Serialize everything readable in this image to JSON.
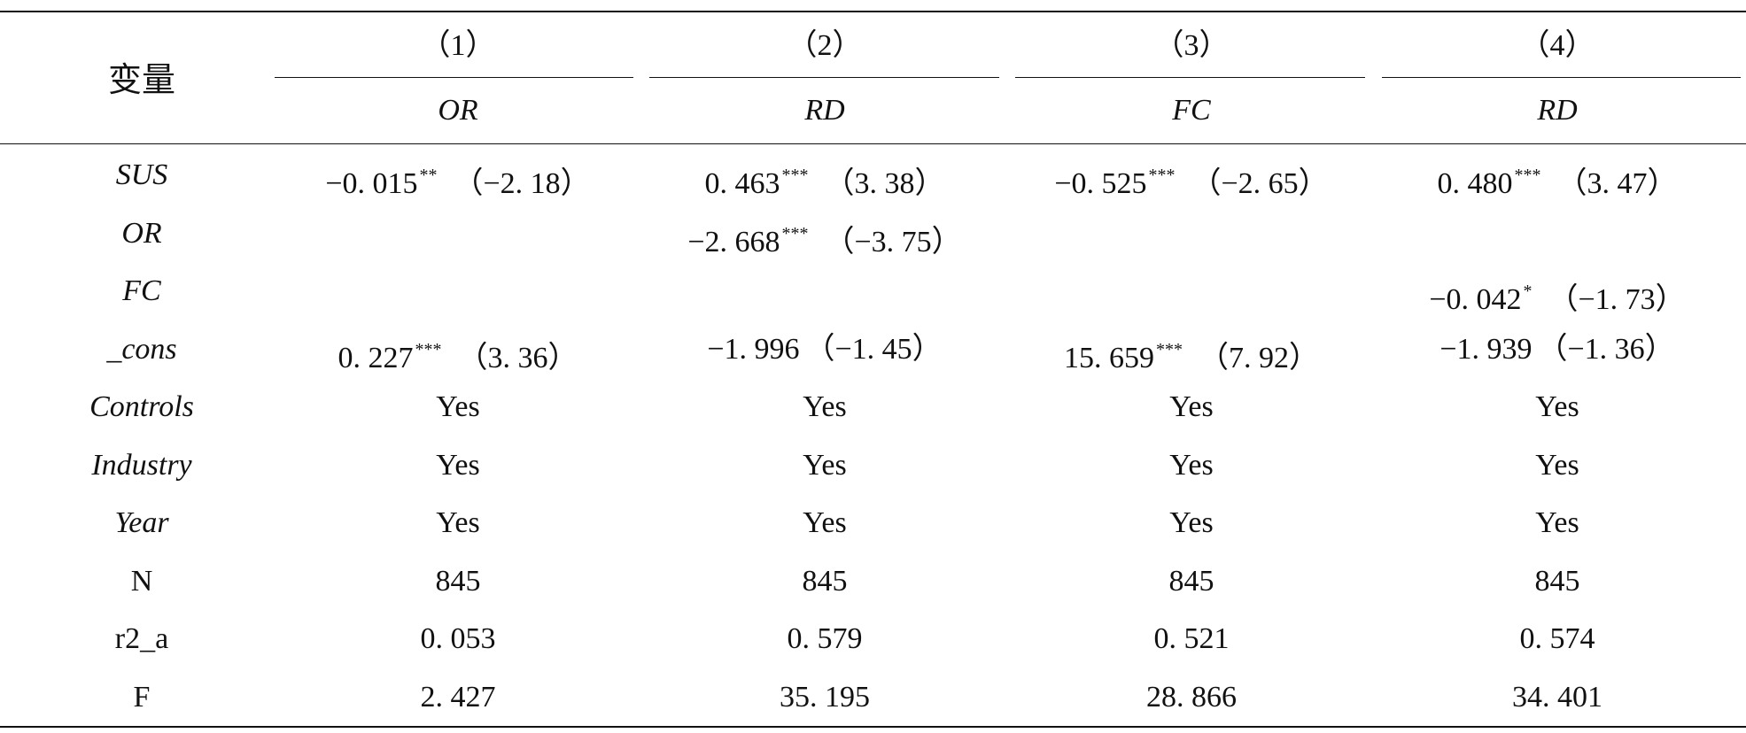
{
  "header": {
    "var_label": "变量",
    "columns": [
      {
        "num": "（1）",
        "dep": "OR"
      },
      {
        "num": "（2）",
        "dep": "RD"
      },
      {
        "num": "（3）",
        "dep": "FC"
      },
      {
        "num": "（4）",
        "dep": "RD"
      }
    ]
  },
  "rows": [
    {
      "name": "SUS",
      "italic": true,
      "cells": [
        {
          "coef": "−0. 015",
          "star": "**",
          "t": "（−2. 18）"
        },
        {
          "coef": "0. 463",
          "star": "***",
          "t": "（3. 38）"
        },
        {
          "coef": "−0. 525",
          "star": "***",
          "t": "（−2. 65）"
        },
        {
          "coef": "0. 480",
          "star": "***",
          "t": "（3. 47）"
        }
      ]
    },
    {
      "name": "OR",
      "italic": true,
      "cells": [
        {
          "coef": "",
          "star": "",
          "t": ""
        },
        {
          "coef": "−2. 668",
          "star": "***",
          "t": "（−3. 75）"
        },
        {
          "coef": "",
          "star": "",
          "t": ""
        },
        {
          "coef": "",
          "star": "",
          "t": ""
        }
      ]
    },
    {
      "name": "FC",
      "italic": true,
      "cells": [
        {
          "coef": "",
          "star": "",
          "t": ""
        },
        {
          "coef": "",
          "star": "",
          "t": ""
        },
        {
          "coef": "",
          "star": "",
          "t": ""
        },
        {
          "coef": "−0. 042",
          "star": "*",
          "t": "（−1. 73）"
        }
      ]
    },
    {
      "name": "_cons",
      "italic": true,
      "cells": [
        {
          "coef": "0. 227",
          "star": "***",
          "t": "（3. 36）"
        },
        {
          "coef": "−1. 996",
          "star": "",
          "t": "（−1. 45）"
        },
        {
          "coef": "15. 659",
          "star": "***",
          "t": "（7. 92）"
        },
        {
          "coef": "−1. 939",
          "star": "",
          "t": "（−1. 36）"
        }
      ]
    },
    {
      "name": "Controls",
      "italic": true,
      "cells": [
        {
          "coef": "Yes",
          "star": "",
          "t": ""
        },
        {
          "coef": "Yes",
          "star": "",
          "t": ""
        },
        {
          "coef": "Yes",
          "star": "",
          "t": ""
        },
        {
          "coef": "Yes",
          "star": "",
          "t": ""
        }
      ]
    },
    {
      "name": "Industry",
      "italic": true,
      "cells": [
        {
          "coef": "Yes",
          "star": "",
          "t": ""
        },
        {
          "coef": "Yes",
          "star": "",
          "t": ""
        },
        {
          "coef": "Yes",
          "star": "",
          "t": ""
        },
        {
          "coef": "Yes",
          "star": "",
          "t": ""
        }
      ]
    },
    {
      "name": "Year",
      "italic": true,
      "cells": [
        {
          "coef": "Yes",
          "star": "",
          "t": ""
        },
        {
          "coef": "Yes",
          "star": "",
          "t": ""
        },
        {
          "coef": "Yes",
          "star": "",
          "t": ""
        },
        {
          "coef": "Yes",
          "star": "",
          "t": ""
        }
      ]
    },
    {
      "name": "N",
      "italic": false,
      "cells": [
        {
          "coef": "845",
          "star": "",
          "t": ""
        },
        {
          "coef": "845",
          "star": "",
          "t": ""
        },
        {
          "coef": "845",
          "star": "",
          "t": ""
        },
        {
          "coef": "845",
          "star": "",
          "t": ""
        }
      ]
    },
    {
      "name": "r2_a",
      "italic": false,
      "cells": [
        {
          "coef": "0. 053",
          "star": "",
          "t": ""
        },
        {
          "coef": "0. 579",
          "star": "",
          "t": ""
        },
        {
          "coef": "0. 521",
          "star": "",
          "t": ""
        },
        {
          "coef": "0. 574",
          "star": "",
          "t": ""
        }
      ]
    },
    {
      "name": "F",
      "italic": false,
      "cells": [
        {
          "coef": "2. 427",
          "star": "",
          "t": ""
        },
        {
          "coef": "35. 195",
          "star": "",
          "t": ""
        },
        {
          "coef": "28. 866",
          "star": "",
          "t": ""
        },
        {
          "coef": "34. 401",
          "star": "",
          "t": ""
        }
      ]
    }
  ]
}
